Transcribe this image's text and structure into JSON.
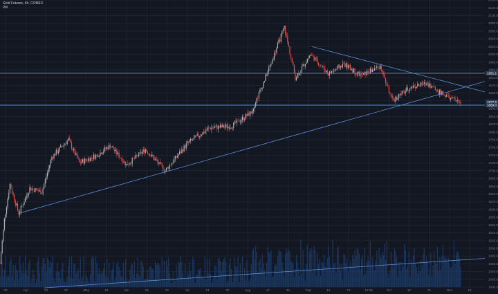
{
  "legend": {
    "symbol_line": "Gold Futures, 4h, COMEX",
    "volume_line": "Vol"
  },
  "colors": {
    "background": "#131722",
    "grid": "#2a2e39",
    "up": "#b9b9b9",
    "down": "#ef5350",
    "trendline": "#5b8fd6",
    "hline": "#4c8fdc",
    "volume": "#1c3a66",
    "axis_text": "#787b86",
    "label_bg": "#2f3d57"
  },
  "chart_data": {
    "type": "candlestick",
    "symbol": "Gold Futures",
    "interval": "4h",
    "exchange": "COMEX",
    "ylim": [
      1400,
      2140
    ],
    "y_ticks": [
      "2140.0",
      "2120.0",
      "2100.0",
      "2080.0",
      "2060.0",
      "2040.0",
      "2020.0",
      "2000.0",
      "1980.0",
      "1960.0",
      "1940.0",
      "1920.0",
      "1900.0",
      "1880.0",
      "1860.0",
      "1840.0",
      "1820.0",
      "1800.0",
      "1780.0",
      "1760.0",
      "1740.0",
      "1720.0",
      "1700.0",
      "1680.0",
      "1660.0",
      "1640.0",
      "1620.0",
      "1600.0",
      "1580.0",
      "1560.0",
      "1540.0",
      "1520.0",
      "1500.0",
      "1480.0",
      "1460.0",
      "1440.0",
      "1420.0",
      "1400.0"
    ],
    "x_ticks": [
      "23",
      "Apr",
      "13",
      "22",
      "May",
      "18",
      "Jun",
      "15",
      "22",
      "Jul",
      "13",
      "22",
      "Aug",
      "17",
      "24",
      "Sep",
      "14",
      "21",
      "12:00",
      "Oct",
      "12",
      "21",
      "Nov",
      "16"
    ],
    "price_labels": [
      {
        "value": "1951.1"
      },
      {
        "value": "1877.6"
      },
      {
        "value": "1869.0"
      }
    ],
    "horizontal_lines": [
      1951.1,
      1869.0
    ],
    "key_prices": [
      {
        "x": 0,
        "y": 1460
      },
      {
        "x": 4,
        "y": 1575
      },
      {
        "x": 9,
        "y": 1665
      },
      {
        "x": 17,
        "y": 1590
      },
      {
        "x": 27,
        "y": 1655
      },
      {
        "x": 38,
        "y": 1645
      },
      {
        "x": 47,
        "y": 1735
      },
      {
        "x": 62,
        "y": 1780
      },
      {
        "x": 72,
        "y": 1720
      },
      {
        "x": 88,
        "y": 1740
      },
      {
        "x": 100,
        "y": 1765
      },
      {
        "x": 115,
        "y": 1715
      },
      {
        "x": 132,
        "y": 1755
      },
      {
        "x": 150,
        "y": 1700
      },
      {
        "x": 170,
        "y": 1770
      },
      {
        "x": 190,
        "y": 1810
      },
      {
        "x": 210,
        "y": 1815
      },
      {
        "x": 228,
        "y": 1850
      },
      {
        "x": 245,
        "y": 1970
      },
      {
        "x": 258,
        "y": 2070
      },
      {
        "x": 268,
        "y": 1940
      },
      {
        "x": 282,
        "y": 2000
      },
      {
        "x": 298,
        "y": 1950
      },
      {
        "x": 312,
        "y": 1975
      },
      {
        "x": 328,
        "y": 1945
      },
      {
        "x": 345,
        "y": 1970
      },
      {
        "x": 356,
        "y": 1880
      },
      {
        "x": 372,
        "y": 1915
      },
      {
        "x": 388,
        "y": 1925
      },
      {
        "x": 400,
        "y": 1900
      },
      {
        "x": 412,
        "y": 1882
      },
      {
        "x": 418,
        "y": 1875
      }
    ],
    "trendlines": [
      {
        "from": {
          "x": 17,
          "y": 1590
        },
        "to": {
          "x": 440,
          "y": 1930
        }
      },
      {
        "from": {
          "x": 283,
          "y": 2020
        },
        "to": {
          "x": 440,
          "y": 1903
        }
      },
      {
        "from": {
          "x": 40,
          "y": 1398
        },
        "to": {
          "x": 440,
          "y": 1474
        }
      }
    ]
  }
}
